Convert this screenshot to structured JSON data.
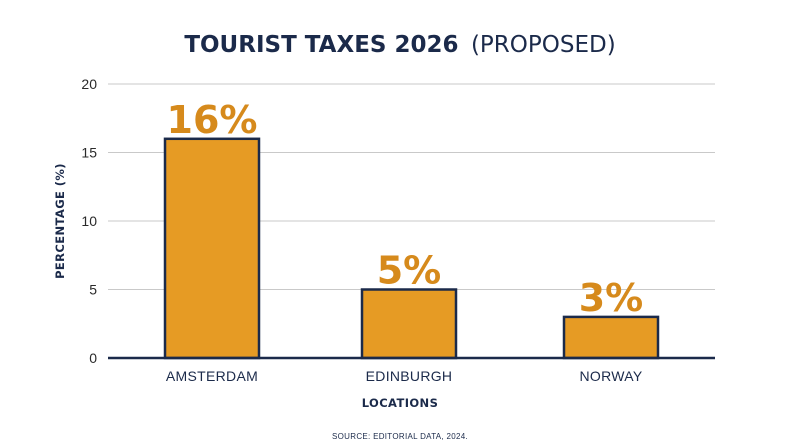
{
  "chart_data": {
    "type": "bar",
    "title": "TOURIST TAXES 2026",
    "title_suffix": "(PROPOSED)",
    "xlabel": "LOCATIONS",
    "ylabel": "PERCENTAGE (%)",
    "categories": [
      "AMSTERDAM",
      "EDINBURGH",
      "NORWAY"
    ],
    "values": [
      16,
      5,
      3
    ],
    "data_labels": [
      "16%",
      "5%",
      "3%"
    ],
    "ylim": [
      0,
      20
    ],
    "yticks": [
      0,
      5,
      10,
      15,
      20
    ],
    "ytick_labels": [
      "0",
      "5",
      "10",
      "15",
      "20"
    ],
    "grid": true,
    "legend": "none",
    "source": "SOURCE: EDITORIAL DATA, 2024.",
    "colors": {
      "bar_fill": "#e69b24",
      "bar_outline": "#1b2a4a",
      "data_label": "#d68a1c",
      "text": "#1b2a4a",
      "grid": "#c9c9c9"
    }
  }
}
